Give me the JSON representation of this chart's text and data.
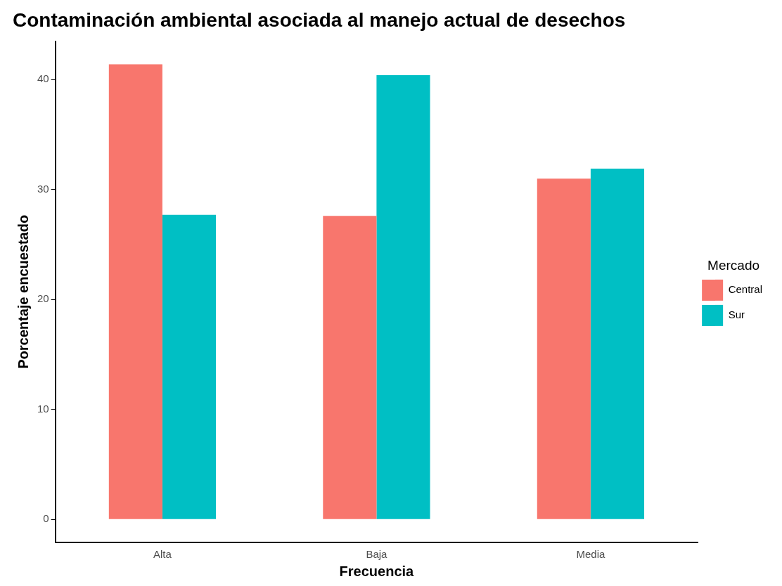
{
  "chart_data": {
    "type": "bar",
    "title": "Contaminación ambiental asociada al manejo actual de desechos",
    "xlabel": "Frecuencia",
    "ylabel": "Porcentaje encuestado",
    "legend_title": "Mercado",
    "categories": [
      "Alta",
      "Baja",
      "Media"
    ],
    "series": [
      {
        "name": "Central",
        "color": "#f8766d",
        "values": [
          41.4,
          27.6,
          31.0
        ]
      },
      {
        "name": "Sur",
        "color": "#00bfc4",
        "values": [
          27.7,
          40.4,
          31.9
        ]
      }
    ],
    "ylim": [
      -2.1,
      43.5
    ],
    "yticks": [
      0,
      10,
      20,
      30,
      40
    ],
    "grid": false,
    "legend": "right"
  }
}
